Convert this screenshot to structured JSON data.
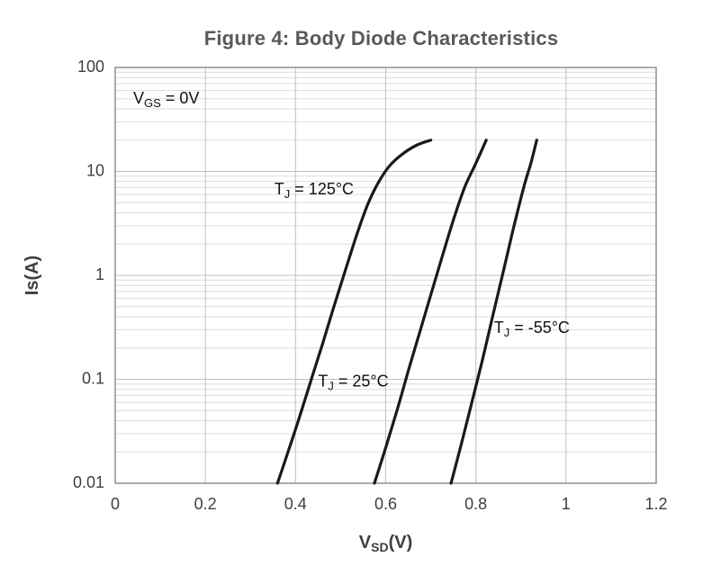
{
  "figure": {
    "title": "Figure 4: Body Diode Characteristics"
  },
  "chart_data": {
    "type": "line",
    "title": "Figure 4: Body Diode Characteristics",
    "x_scale": "linear",
    "y_scale": "log",
    "xlim": [
      0,
      1.2
    ],
    "ylim": [
      0.01,
      100
    ],
    "grid": true,
    "legend": "none",
    "xlabel_segments": [
      {
        "text": "V",
        "sub": false
      },
      {
        "text": "SD",
        "sub": true
      },
      {
        "text": "(V)",
        "sub": false
      }
    ],
    "ylabel_segments": [
      {
        "text": "Is(A)",
        "sub": false
      }
    ],
    "x_ticks": [
      {
        "v": 0,
        "label": "0"
      },
      {
        "v": 0.2,
        "label": "0.2"
      },
      {
        "v": 0.4,
        "label": "0.4"
      },
      {
        "v": 0.6,
        "label": "0.6"
      },
      {
        "v": 0.8,
        "label": "0.8"
      },
      {
        "v": 1,
        "label": "1"
      },
      {
        "v": 1.2,
        "label": "1.2"
      }
    ],
    "y_ticks": [
      {
        "v": 100,
        "label": "100"
      },
      {
        "v": 10,
        "label": "10"
      },
      {
        "v": 1,
        "label": "1"
      },
      {
        "v": 0.1,
        "label": "0.1"
      },
      {
        "v": 0.01,
        "label": "0.01"
      }
    ],
    "series": [
      {
        "name": "TJ = 125°C",
        "color": "#1a1a1a",
        "points": [
          [
            0.36,
            0.01
          ],
          [
            0.385,
            0.021
          ],
          [
            0.41,
            0.045
          ],
          [
            0.435,
            0.1
          ],
          [
            0.46,
            0.22
          ],
          [
            0.485,
            0.5
          ],
          [
            0.51,
            1.1
          ],
          [
            0.535,
            2.4
          ],
          [
            0.56,
            4.8
          ],
          [
            0.585,
            8.0
          ],
          [
            0.61,
            11.5
          ],
          [
            0.64,
            15.0
          ],
          [
            0.67,
            18.0
          ],
          [
            0.7,
            20.0
          ]
        ]
      },
      {
        "name": "TJ = 25°C",
        "color": "#1a1a1a",
        "points": [
          [
            0.575,
            0.01
          ],
          [
            0.6,
            0.022
          ],
          [
            0.625,
            0.05
          ],
          [
            0.65,
            0.12
          ],
          [
            0.675,
            0.28
          ],
          [
            0.7,
            0.65
          ],
          [
            0.725,
            1.5
          ],
          [
            0.75,
            3.4
          ],
          [
            0.775,
            7.0
          ],
          [
            0.8,
            12.0
          ],
          [
            0.823,
            20.0
          ]
        ]
      },
      {
        "name": "TJ = -55°C",
        "color": "#1a1a1a",
        "points": [
          [
            0.745,
            0.01
          ],
          [
            0.768,
            0.024
          ],
          [
            0.791,
            0.06
          ],
          [
            0.814,
            0.15
          ],
          [
            0.837,
            0.4
          ],
          [
            0.86,
            1.05
          ],
          [
            0.883,
            2.8
          ],
          [
            0.906,
            7.0
          ],
          [
            0.922,
            12.0
          ],
          [
            0.935,
            20.0
          ]
        ]
      }
    ],
    "annotations": [
      {
        "id": "vgs-note",
        "x": 0.04,
        "y": 45,
        "segments": [
          {
            "text": "V",
            "sub": false
          },
          {
            "text": "GS",
            "sub": true
          },
          {
            "text": " = 0V",
            "sub": false
          }
        ]
      },
      {
        "id": "tj-125-label",
        "x": 0.353,
        "y": 6,
        "segments": [
          {
            "text": "T",
            "sub": false
          },
          {
            "text": "J",
            "sub": true
          },
          {
            "text": " = 125°C",
            "sub": false
          }
        ]
      },
      {
        "id": "tj-25-label",
        "x": 0.45,
        "y": 0.085,
        "segments": [
          {
            "text": "T",
            "sub": false
          },
          {
            "text": "J",
            "sub": true
          },
          {
            "text": " = 25°C",
            "sub": false
          }
        ]
      },
      {
        "id": "tj-minus55-label",
        "x": 0.84,
        "y": 0.28,
        "segments": [
          {
            "text": "T",
            "sub": false
          },
          {
            "text": "J",
            "sub": true
          },
          {
            "text": " = -55°C",
            "sub": false
          }
        ]
      }
    ],
    "style": {
      "curve_color": "#1a1a1a",
      "grid_minor_color": "#dcdcdc",
      "grid_major_color": "#c0c0c0",
      "border_color": "#8f8f8f",
      "text_color": "#3f3f3f",
      "annotation_color": "#111111",
      "title_color": "#595959"
    }
  }
}
